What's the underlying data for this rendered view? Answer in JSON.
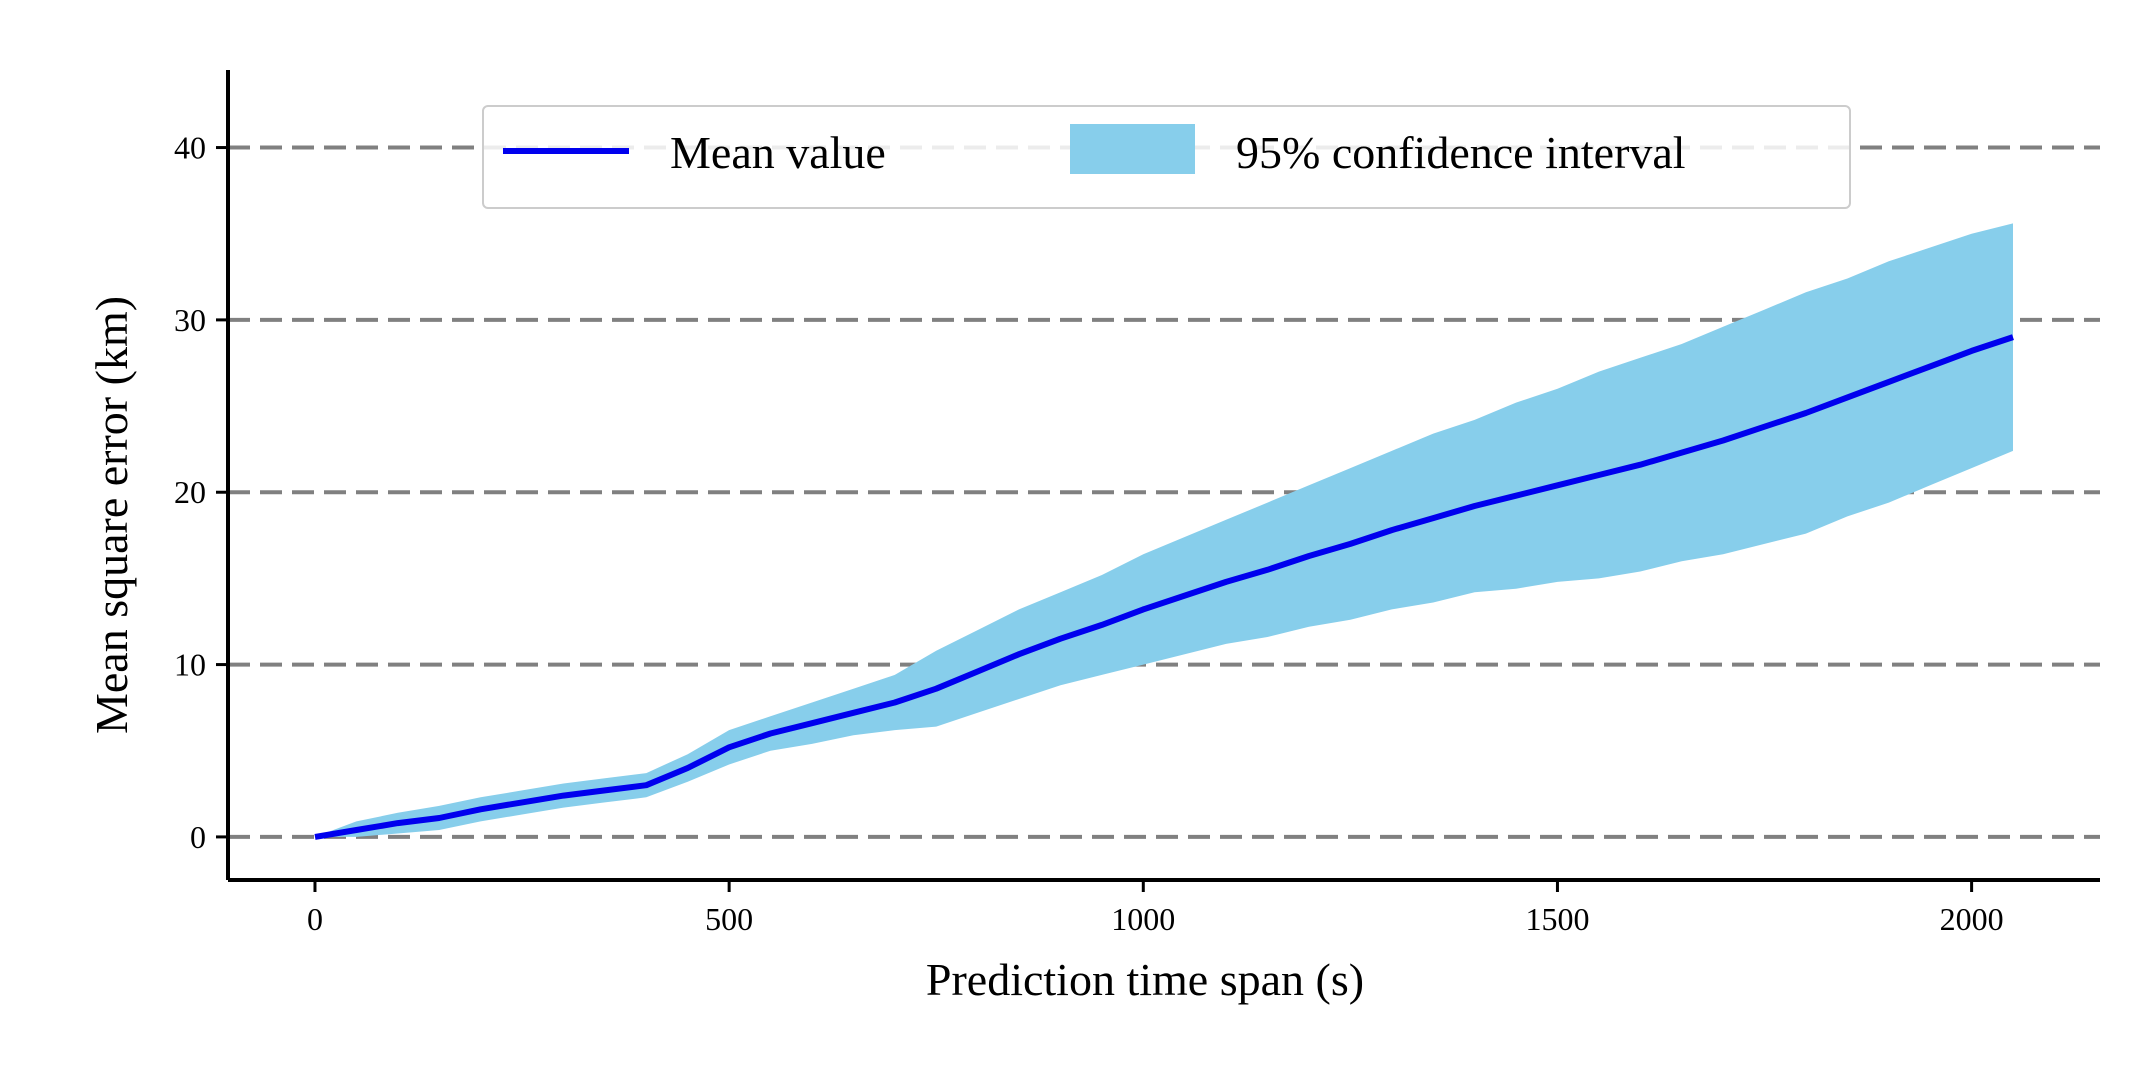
{
  "chart_data": {
    "type": "line",
    "title": "",
    "xlabel": "Prediction time span (s)",
    "ylabel": "Mean square error (km)",
    "xlim": [
      -105,
      2155
    ],
    "ylim": [
      -2.5,
      44.5
    ],
    "xticks": [
      0,
      500,
      1000,
      1500,
      2000
    ],
    "yticks": [
      0,
      10,
      20,
      30,
      40
    ],
    "xtick_labels": [
      "0",
      "500",
      "1000",
      "1500",
      "2000"
    ],
    "ytick_labels": [
      "0",
      "10",
      "20",
      "30",
      "40"
    ],
    "grid": "horizontal dashed gray at y ticks",
    "legend_position": "top-center",
    "legend": {
      "mean_label": "Mean value",
      "ci_label": "95% confidence interval"
    },
    "colors": {
      "mean": "#0000ee",
      "ci": "#87ceeb",
      "grid": "#808080"
    },
    "series": [
      {
        "name": "Mean value",
        "x": [
          0,
          50,
          100,
          150,
          200,
          250,
          300,
          350,
          400,
          450,
          500,
          550,
          600,
          650,
          700,
          750,
          800,
          850,
          900,
          950,
          1000,
          1050,
          1100,
          1150,
          1200,
          1250,
          1300,
          1350,
          1400,
          1450,
          1500,
          1550,
          1600,
          1650,
          1700,
          1750,
          1800,
          1850,
          1900,
          1950,
          2000,
          2050
        ],
        "y": [
          0,
          0.4,
          0.8,
          1.1,
          1.6,
          2.0,
          2.4,
          2.7,
          3.0,
          4.0,
          5.2,
          6.0,
          6.6,
          7.2,
          7.8,
          8.6,
          9.6,
          10.6,
          11.5,
          12.3,
          13.2,
          14.0,
          14.8,
          15.5,
          16.3,
          17.0,
          17.8,
          18.5,
          19.2,
          19.8,
          20.4,
          21.0,
          21.6,
          22.3,
          23.0,
          23.8,
          24.6,
          25.5,
          26.4,
          27.3,
          28.2,
          29.0
        ]
      },
      {
        "name": "95% confidence interval",
        "x": [
          0,
          50,
          100,
          150,
          200,
          250,
          300,
          350,
          400,
          450,
          500,
          550,
          600,
          650,
          700,
          750,
          800,
          850,
          900,
          950,
          1000,
          1050,
          1100,
          1150,
          1200,
          1250,
          1300,
          1350,
          1400,
          1450,
          1500,
          1550,
          1600,
          1650,
          1700,
          1750,
          1800,
          1850,
          1900,
          1950,
          2000,
          2050
        ],
        "lower": [
          0,
          0,
          0.2,
          0.4,
          0.9,
          1.3,
          1.7,
          2.0,
          2.3,
          3.2,
          4.2,
          5.0,
          5.4,
          5.9,
          6.2,
          6.4,
          7.2,
          8.0,
          8.8,
          9.4,
          10.0,
          10.6,
          11.2,
          11.6,
          12.2,
          12.6,
          13.2,
          13.6,
          14.2,
          14.4,
          14.8,
          15.0,
          15.4,
          16.0,
          16.4,
          17.0,
          17.6,
          18.6,
          19.4,
          20.4,
          21.4,
          22.4
        ],
        "upper": [
          0,
          0.9,
          1.4,
          1.8,
          2.3,
          2.7,
          3.1,
          3.4,
          3.7,
          4.8,
          6.2,
          7.0,
          7.8,
          8.6,
          9.4,
          10.8,
          12.0,
          13.2,
          14.2,
          15.2,
          16.4,
          17.4,
          18.4,
          19.4,
          20.4,
          21.4,
          22.4,
          23.4,
          24.2,
          25.2,
          26.0,
          27.0,
          27.8,
          28.6,
          29.6,
          30.6,
          31.6,
          32.4,
          33.4,
          34.2,
          35.0,
          35.6
        ]
      }
    ]
  }
}
